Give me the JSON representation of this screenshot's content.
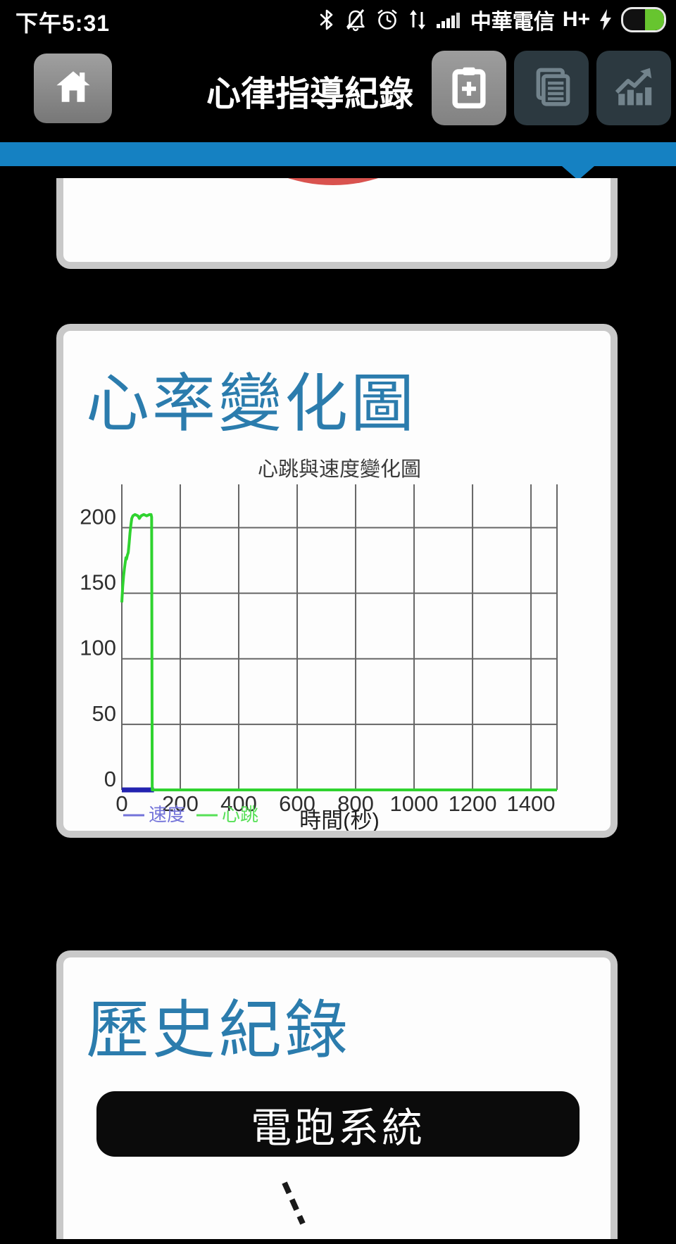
{
  "status_bar": {
    "time": "下午5:31",
    "carrier": "中華電信",
    "network_type": "H+",
    "icons": [
      "bluetooth-icon",
      "vibrate-off-icon",
      "alarm-icon",
      "data-traffic-icon",
      "signal-strength-icon",
      "charging-icon",
      "battery-icon"
    ],
    "battery": {
      "fill_color": "#67c52f"
    }
  },
  "header": {
    "title": "心律指導紀錄",
    "buttons": [
      {
        "name": "home-button",
        "icon": "home-icon"
      },
      {
        "name": "add-record-button",
        "icon": "clipboard-plus-icon",
        "active": true
      },
      {
        "name": "records-list-button",
        "icon": "documents-icon",
        "active": false
      },
      {
        "name": "statistics-button",
        "icon": "chart-trend-icon",
        "active": false
      }
    ]
  },
  "gauge_card": {
    "arc_color": "#d9534f"
  },
  "chart_card": {
    "title": "心率變化圖"
  },
  "chart_data": {
    "type": "line",
    "title": "心跳與速度變化圖",
    "xlabel": "時間(秒)",
    "ylabel": "",
    "xlim": [
      0,
      1489
    ],
    "ylim": [
      0,
      233
    ],
    "xticks": [
      0,
      200,
      400,
      600,
      800,
      1000,
      1200,
      1400
    ],
    "yticks": [
      0,
      50,
      100,
      150,
      200
    ],
    "grid": true,
    "legend_position": "bottom-left",
    "series": [
      {
        "name": "速度",
        "color": "#2323b0",
        "legend_color": "#7373d9",
        "width": 7,
        "points": [
          [
            0,
            0
          ],
          [
            110,
            0
          ]
        ]
      },
      {
        "name": "心跳",
        "color": "#2fd32f",
        "legend_color": "#57e057",
        "width": 4,
        "points": [
          [
            0,
            143
          ],
          [
            3,
            155
          ],
          [
            6,
            163
          ],
          [
            9,
            169
          ],
          [
            12,
            174
          ],
          [
            14,
            177
          ],
          [
            16,
            176
          ],
          [
            19,
            179
          ],
          [
            22,
            181
          ],
          [
            25,
            188
          ],
          [
            28,
            196
          ],
          [
            31,
            202
          ],
          [
            34,
            207
          ],
          [
            38,
            209
          ],
          [
            45,
            210
          ],
          [
            55,
            209
          ],
          [
            60,
            207
          ],
          [
            66,
            209
          ],
          [
            75,
            210
          ],
          [
            85,
            209
          ],
          [
            95,
            210
          ],
          [
            100,
            210
          ],
          [
            102,
            208
          ],
          [
            104,
            0
          ],
          [
            1489,
            0
          ]
        ]
      }
    ]
  },
  "history_card": {
    "title": "歷史紀錄",
    "button_label": "電跑系統"
  },
  "colors": {
    "accent_blue": "#2b7cad",
    "ribbon_blue": "#1581c2",
    "card_border": "#c9c9c9",
    "gauge_red": "#d9534f",
    "battery_green": "#67c52f"
  }
}
